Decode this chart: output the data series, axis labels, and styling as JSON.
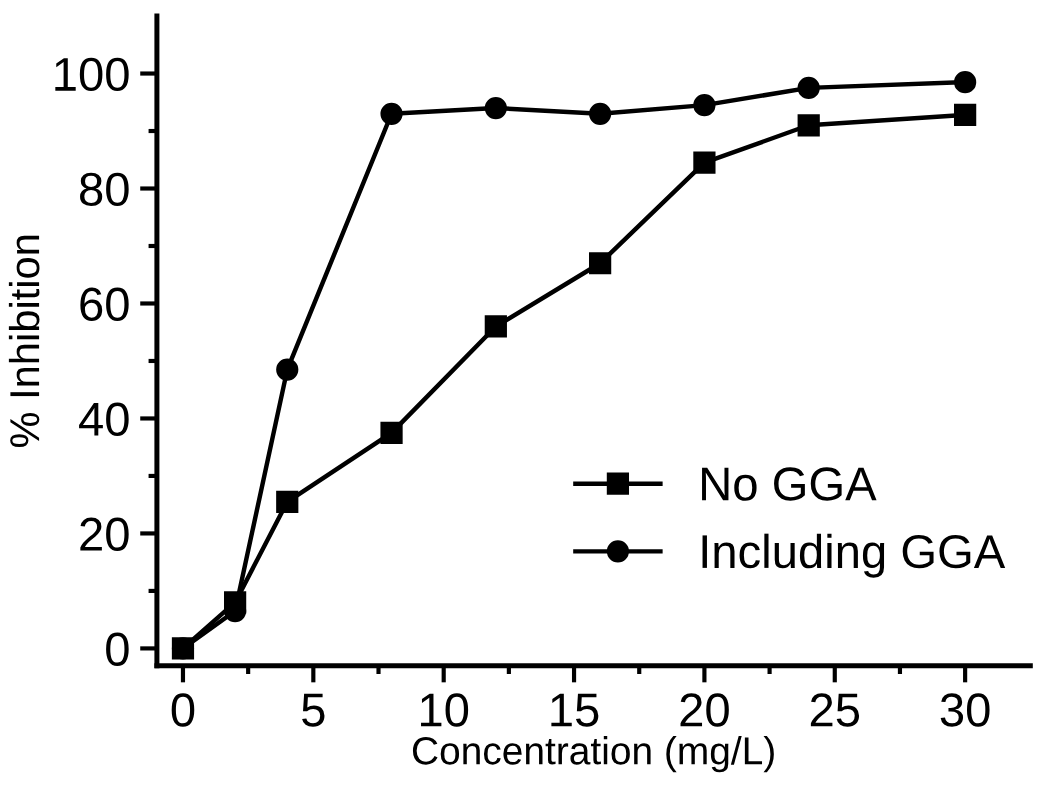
{
  "chart_data": {
    "type": "line",
    "xlabel": "Concentration (mg/L)",
    "ylabel": "% Inhibition",
    "x": [
      0,
      2,
      4,
      8,
      12,
      16,
      20,
      24,
      30
    ],
    "series": [
      {
        "name": "No GGA",
        "color": "#000000",
        "marker": "square",
        "values": [
          0,
          8,
          25.5,
          37.5,
          56,
          67,
          84.5,
          91,
          92.8
        ]
      },
      {
        "name": "Including GGA",
        "color": "#000000",
        "marker": "circle",
        "values": [
          0,
          6.5,
          48.5,
          93,
          94,
          93,
          94.5,
          97.5,
          98.5
        ]
      }
    ],
    "xlim": [
      -1,
      32.5
    ],
    "ylim": [
      -3,
      110
    ],
    "xticks": [
      0,
      5,
      10,
      15,
      20,
      25,
      30
    ],
    "yticks": [
      0,
      20,
      40,
      60,
      80,
      100
    ],
    "grid": false,
    "legend": "bottom right",
    "line_style": "solid"
  }
}
